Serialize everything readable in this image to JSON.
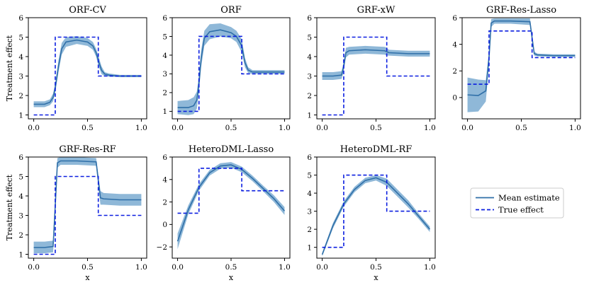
{
  "legend": {
    "mean": "Mean estimate",
    "true": "True effect"
  },
  "colors": {
    "mean": "#2f6fa8",
    "band": "#8fb8d8",
    "true": "#0b1ee0"
  },
  "chart_data": [
    {
      "id": "orf-cv",
      "type": "line",
      "title": "ORF-CV",
      "xlabel": "",
      "ylabel": "Treatment effect",
      "xlim": [
        -0.05,
        1.05
      ],
      "ylim": [
        0.8,
        6.0
      ],
      "xticks": [
        0.0,
        0.5,
        1.0
      ],
      "xticklabels": [
        "0.0",
        "0.5",
        "1.0"
      ],
      "yticks": [
        1,
        2,
        3,
        4,
        5,
        6
      ],
      "yticklabels": [
        "1",
        "2",
        "3",
        "4",
        "5",
        "6"
      ],
      "true_effect": {
        "x": [
          0,
          0.2,
          0.2,
          0.6,
          0.6,
          1.0
        ],
        "y": [
          1,
          1,
          5,
          5,
          3,
          3
        ]
      },
      "mean": {
        "x": [
          0,
          0.1,
          0.15,
          0.18,
          0.2,
          0.23,
          0.26,
          0.3,
          0.4,
          0.5,
          0.55,
          0.58,
          0.6,
          0.63,
          0.66,
          0.7,
          0.8,
          1.0
        ],
        "y": [
          1.55,
          1.55,
          1.65,
          1.9,
          2.4,
          3.5,
          4.4,
          4.75,
          4.85,
          4.75,
          4.55,
          4.2,
          3.8,
          3.3,
          3.1,
          3.05,
          3.0,
          3.0
        ]
      },
      "band_halfwidth": [
        0.15,
        0.15,
        0.15,
        0.2,
        0.25,
        0.3,
        0.3,
        0.25,
        0.2,
        0.2,
        0.2,
        0.2,
        0.25,
        0.2,
        0.1,
        0.08,
        0.06,
        0.06
      ]
    },
    {
      "id": "orf",
      "type": "line",
      "title": "ORF",
      "xlabel": "",
      "ylabel": "",
      "xlim": [
        -0.05,
        1.05
      ],
      "ylim": [
        0.6,
        6.0
      ],
      "xticks": [
        0.0,
        0.5,
        1.0
      ],
      "xticklabels": [
        "0.0",
        "0.5",
        "1.0"
      ],
      "yticks": [
        1,
        2,
        3,
        4,
        5,
        6
      ],
      "yticklabels": [
        "1",
        "2",
        "3",
        "4",
        "5",
        "6"
      ],
      "true_effect": {
        "x": [
          0,
          0.2,
          0.2,
          0.6,
          0.6,
          1.0
        ],
        "y": [
          1,
          1,
          5,
          5,
          3,
          3
        ]
      },
      "mean": {
        "x": [
          0,
          0.1,
          0.15,
          0.18,
          0.2,
          0.22,
          0.25,
          0.3,
          0.4,
          0.5,
          0.55,
          0.6,
          0.63,
          0.66,
          0.7,
          0.8,
          1.0
        ],
        "y": [
          1.2,
          1.2,
          1.3,
          1.6,
          2.5,
          3.8,
          4.9,
          5.25,
          5.35,
          5.2,
          5.0,
          4.5,
          3.6,
          3.2,
          3.1,
          3.1,
          3.1
        ]
      },
      "band_halfwidth": [
        0.35,
        0.4,
        0.45,
        0.45,
        0.45,
        0.45,
        0.4,
        0.4,
        0.35,
        0.3,
        0.3,
        0.35,
        0.25,
        0.15,
        0.1,
        0.1,
        0.1
      ]
    },
    {
      "id": "grf-xw",
      "type": "line",
      "title": "GRF-xW",
      "xlabel": "",
      "ylabel": "",
      "xlim": [
        -0.05,
        1.05
      ],
      "ylim": [
        0.8,
        6.0
      ],
      "xticks": [
        0.0,
        0.5,
        1.0
      ],
      "xticklabels": [
        "0.0",
        "0.5",
        "1.0"
      ],
      "yticks": [
        1,
        2,
        3,
        4,
        5,
        6
      ],
      "yticklabels": [
        "1",
        "2",
        "3",
        "4",
        "5",
        "6"
      ],
      "true_effect": {
        "x": [
          0,
          0.2,
          0.2,
          0.6,
          0.6,
          1.0
        ],
        "y": [
          1,
          1,
          5,
          5,
          3,
          3
        ]
      },
      "mean": {
        "x": [
          0,
          0.1,
          0.18,
          0.2,
          0.22,
          0.25,
          0.4,
          0.58,
          0.6,
          0.62,
          0.8,
          1.0
        ],
        "y": [
          3.0,
          3.0,
          3.05,
          3.5,
          4.2,
          4.3,
          4.35,
          4.3,
          4.25,
          4.2,
          4.15,
          4.15
        ]
      },
      "band_halfwidth": [
        0.2,
        0.2,
        0.2,
        0.25,
        0.25,
        0.2,
        0.2,
        0.2,
        0.2,
        0.15,
        0.15,
        0.15
      ]
    },
    {
      "id": "grf-res-lasso",
      "type": "line",
      "title": "GRF-Res-Lasso",
      "xlabel": "",
      "ylabel": "",
      "xlim": [
        -0.05,
        1.05
      ],
      "ylim": [
        -1.6,
        6.0
      ],
      "xticks": [
        0.0,
        0.5,
        1.0
      ],
      "xticklabels": [
        "0.0",
        "0.5",
        "1.0"
      ],
      "yticks": [
        0,
        2,
        4,
        6
      ],
      "yticklabels": [
        "0",
        "2",
        "4",
        "6"
      ],
      "true_effect": {
        "x": [
          0,
          0.2,
          0.2,
          0.6,
          0.6,
          1.0
        ],
        "y": [
          1,
          1,
          5,
          5,
          3,
          3
        ]
      },
      "mean": {
        "x": [
          0,
          0.1,
          0.17,
          0.2,
          0.22,
          0.25,
          0.4,
          0.58,
          0.6,
          0.62,
          0.65,
          0.8,
          1.0
        ],
        "y": [
          0.2,
          0.15,
          0.5,
          3.0,
          5.6,
          5.75,
          5.75,
          5.7,
          4.5,
          3.3,
          3.2,
          3.15,
          3.15
        ]
      },
      "band_halfwidth": [
        1.3,
        1.2,
        0.8,
        0.5,
        0.3,
        0.2,
        0.2,
        0.25,
        0.3,
        0.15,
        0.1,
        0.1,
        0.1
      ]
    },
    {
      "id": "grf-res-rf",
      "type": "line",
      "title": "GRF-Res-RF",
      "xlabel": "x",
      "ylabel": "Treatment effect",
      "xlim": [
        -0.05,
        1.05
      ],
      "ylim": [
        0.8,
        6.0
      ],
      "xticks": [
        0.0,
        0.5,
        1.0
      ],
      "xticklabels": [
        "0.0",
        "0.5",
        "1.0"
      ],
      "yticks": [
        1,
        2,
        3,
        4,
        5,
        6
      ],
      "yticklabels": [
        "1",
        "2",
        "3",
        "4",
        "5",
        "6"
      ],
      "true_effect": {
        "x": [
          0,
          0.2,
          0.2,
          0.6,
          0.6,
          1.0
        ],
        "y": [
          1,
          1,
          5,
          5,
          3,
          3
        ]
      },
      "mean": {
        "x": [
          0,
          0.1,
          0.18,
          0.2,
          0.22,
          0.25,
          0.4,
          0.58,
          0.6,
          0.62,
          0.65,
          0.8,
          1.0
        ],
        "y": [
          1.35,
          1.35,
          1.4,
          3.5,
          5.7,
          5.8,
          5.8,
          5.75,
          4.8,
          3.9,
          3.85,
          3.8,
          3.8
        ]
      },
      "band_halfwidth": [
        0.3,
        0.3,
        0.3,
        0.35,
        0.25,
        0.2,
        0.2,
        0.2,
        0.3,
        0.35,
        0.3,
        0.3,
        0.3
      ]
    },
    {
      "id": "heterodml-lasso",
      "type": "line",
      "title": "HeteroDML-Lasso",
      "xlabel": "x",
      "ylabel": "",
      "xlim": [
        -0.05,
        1.05
      ],
      "ylim": [
        -3.0,
        6.0
      ],
      "xticks": [
        0.0,
        0.5,
        1.0
      ],
      "xticklabels": [
        "0.0",
        "0.5",
        "1.0"
      ],
      "yticks": [
        -2,
        0,
        2,
        4,
        6
      ],
      "yticklabels": [
        "−2",
        "0",
        "2",
        "4",
        "6"
      ],
      "true_effect": {
        "x": [
          0,
          0.2,
          0.2,
          0.6,
          0.6,
          1.0
        ],
        "y": [
          1,
          1,
          5,
          5,
          3,
          3
        ]
      },
      "mean": {
        "x": [
          0,
          0.1,
          0.2,
          0.3,
          0.4,
          0.5,
          0.6,
          0.7,
          0.8,
          0.9,
          1.0
        ],
        "y": [
          -1.5,
          1.3,
          3.3,
          4.6,
          5.2,
          5.3,
          4.9,
          4.1,
          3.2,
          2.3,
          1.2
        ]
      },
      "band_halfwidth": [
        0.7,
        0.4,
        0.3,
        0.25,
        0.25,
        0.25,
        0.25,
        0.25,
        0.25,
        0.3,
        0.35
      ]
    },
    {
      "id": "heterodml-rf",
      "type": "line",
      "title": "HeteroDML-RF",
      "xlabel": "x",
      "ylabel": "",
      "xlim": [
        -0.05,
        1.05
      ],
      "ylim": [
        0.4,
        6.0
      ],
      "xticks": [
        0.0,
        0.5,
        1.0
      ],
      "xticklabels": [
        "0.0",
        "0.5",
        "1.0"
      ],
      "yticks": [
        1,
        2,
        3,
        4,
        5,
        6
      ],
      "yticklabels": [
        "1",
        "2",
        "3",
        "4",
        "5",
        "6"
      ],
      "true_effect": {
        "x": [
          0,
          0.2,
          0.2,
          0.6,
          0.6,
          1.0
        ],
        "y": [
          1,
          1,
          5,
          5,
          3,
          3
        ]
      },
      "mean": {
        "x": [
          0,
          0.1,
          0.2,
          0.3,
          0.4,
          0.5,
          0.6,
          0.7,
          0.8,
          0.9,
          1.0
        ],
        "y": [
          0.6,
          2.2,
          3.4,
          4.2,
          4.7,
          4.85,
          4.6,
          4.0,
          3.4,
          2.7,
          2.0
        ]
      },
      "band_halfwidth": [
        0.1,
        0.15,
        0.15,
        0.15,
        0.15,
        0.15,
        0.2,
        0.2,
        0.2,
        0.15,
        0.15
      ]
    }
  ]
}
